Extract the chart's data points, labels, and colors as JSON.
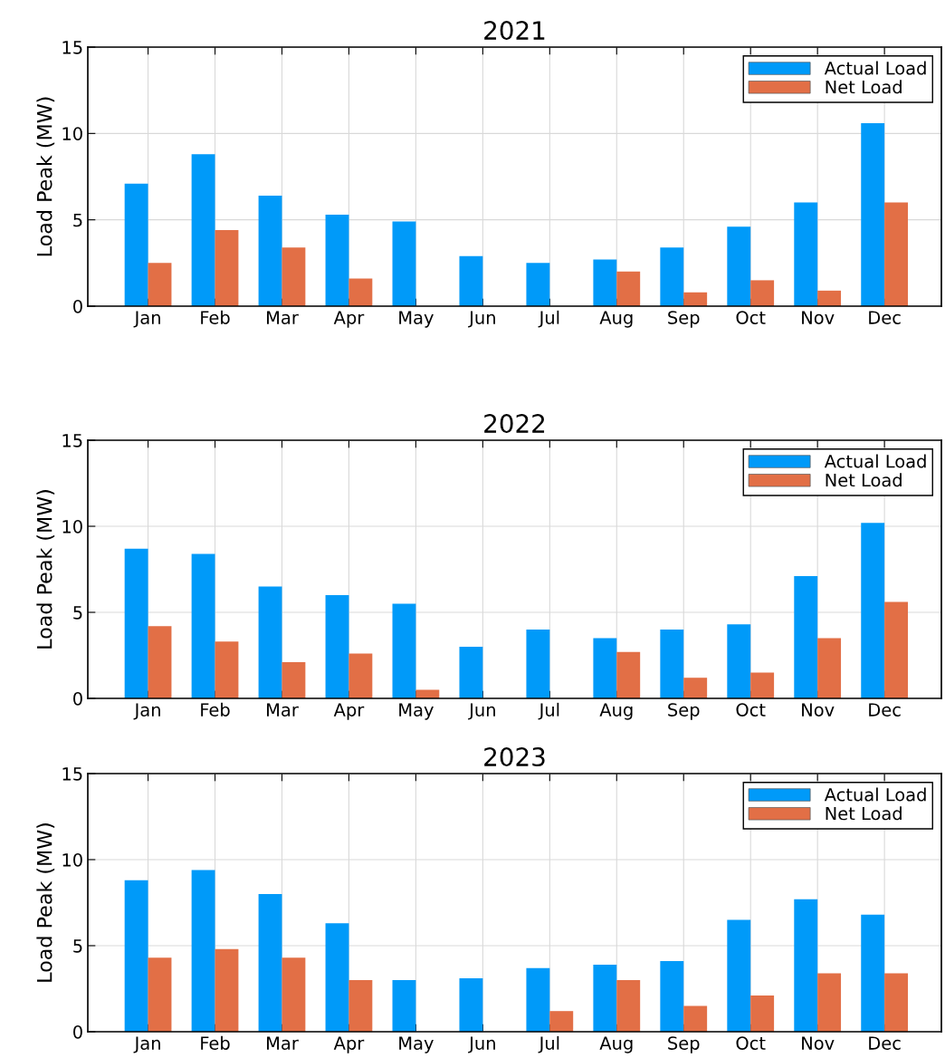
{
  "chart_data": [
    {
      "type": "bar",
      "title": "2021",
      "ylabel": "Load Peak (MW)",
      "categories": [
        "Jan",
        "Feb",
        "Mar",
        "Apr",
        "May",
        "Jun",
        "Jul",
        "Aug",
        "Sep",
        "Oct",
        "Nov",
        "Dec"
      ],
      "ylim": [
        0,
        15
      ],
      "yticks": [
        0,
        5,
        10,
        15
      ],
      "grid": true,
      "legend": "top right",
      "series": [
        {
          "name": "Actual Load",
          "color": "#009af9",
          "values": [
            7.1,
            8.8,
            6.4,
            5.3,
            4.9,
            2.9,
            2.5,
            2.7,
            3.4,
            4.6,
            6.0,
            10.6
          ]
        },
        {
          "name": "Net Load",
          "color": "#e26f46",
          "values": [
            2.5,
            4.4,
            3.4,
            1.6,
            0,
            0,
            0,
            2.0,
            0.8,
            1.5,
            0.9,
            6.0
          ]
        }
      ]
    },
    {
      "type": "bar",
      "title": "2022",
      "ylabel": "Load Peak (MW)",
      "categories": [
        "Jan",
        "Feb",
        "Mar",
        "Apr",
        "May",
        "Jun",
        "Jul",
        "Aug",
        "Sep",
        "Oct",
        "Nov",
        "Dec"
      ],
      "ylim": [
        0,
        15
      ],
      "yticks": [
        0,
        5,
        10,
        15
      ],
      "grid": true,
      "legend": "top right",
      "series": [
        {
          "name": "Actual Load",
          "color": "#009af9",
          "values": [
            8.7,
            8.4,
            6.5,
            6.0,
            5.5,
            3.0,
            4.0,
            3.5,
            4.0,
            4.3,
            7.1,
            10.2
          ]
        },
        {
          "name": "Net Load",
          "color": "#e26f46",
          "values": [
            4.2,
            3.3,
            2.1,
            2.6,
            0.5,
            0,
            0,
            2.7,
            1.2,
            1.5,
            3.5,
            5.6
          ]
        }
      ]
    },
    {
      "type": "bar",
      "title": "2023",
      "ylabel": "Load Peak (MW)",
      "categories": [
        "Jan",
        "Feb",
        "Mar",
        "Apr",
        "May",
        "Jun",
        "Jul",
        "Aug",
        "Sep",
        "Oct",
        "Nov",
        "Dec"
      ],
      "ylim": [
        0,
        15
      ],
      "yticks": [
        0,
        5,
        10,
        15
      ],
      "grid": true,
      "legend": "top right",
      "series": [
        {
          "name": "Actual Load",
          "color": "#009af9",
          "values": [
            8.8,
            9.4,
            8.0,
            6.3,
            3.0,
            3.1,
            3.7,
            3.9,
            4.1,
            6.5,
            7.7,
            6.8
          ]
        },
        {
          "name": "Net Load",
          "color": "#e26f46",
          "values": [
            4.3,
            4.8,
            4.3,
            3.0,
            0,
            0,
            1.2,
            3.0,
            1.5,
            2.1,
            3.4,
            3.4
          ]
        }
      ]
    }
  ]
}
